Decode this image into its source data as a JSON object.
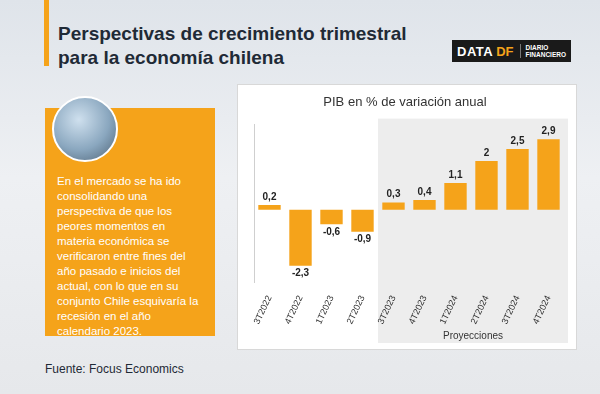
{
  "page": {
    "title": [
      "Perspectivas de crecimiento trimestral",
      "para la economía chilena"
    ],
    "logo": [
      "DATA",
      "DF",
      "DIARIO",
      "FINANCIERO"
    ],
    "note": "En el mercado se ha ido consolidando una perspectiva de que los peores momentos en materia económica se verificaron entre fines del año pasado e inicios del actual, con lo que en su conjunto Chile esquivaría la recesión en el año calendario 2023.",
    "source": "Fuente: Focus Economics"
  },
  "chart_data": {
    "type": "bar",
    "title": "PIB en % de variación anual",
    "categories": [
      "3T2022",
      "4T2022",
      "1T2023",
      "2T2023",
      "3T2023",
      "4T2023",
      "1T2024",
      "2T2024",
      "3T2024",
      "4T2024"
    ],
    "values": [
      0.2,
      -2.3,
      -0.6,
      -0.9,
      0.3,
      0.4,
      1.1,
      2,
      2.5,
      2.9
    ],
    "value_labels": [
      "0,2",
      "-2,3",
      "-0,6",
      "-0,9",
      "0,3",
      "0,4",
      "1,1",
      "2",
      "2,5",
      "2,9"
    ],
    "color": "#f5a31a",
    "ylim": [
      -3,
      3.5
    ],
    "grid": false,
    "data_labels": true,
    "tick_labels": "x",
    "annotations": [
      {
        "text": "Proyecciones",
        "from": "3T2023",
        "to": "4T2024"
      }
    ]
  }
}
